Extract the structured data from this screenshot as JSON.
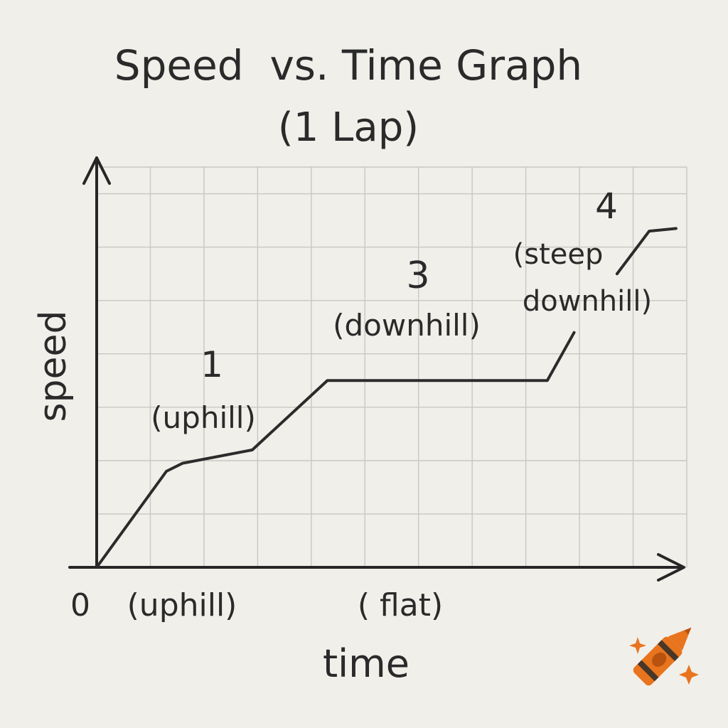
{
  "chart_data": {
    "type": "line",
    "title": "Speed  vs. Time Graph",
    "subtitle": "(1 Lap)",
    "xlabel": "time",
    "ylabel": "speed",
    "x_tick_labels": [
      "0"
    ],
    "grid": true,
    "x_range": [
      0,
      11
    ],
    "y_range": [
      0,
      7.5
    ],
    "series": [
      {
        "points": [
          {
            "x": 0,
            "y": 0
          },
          {
            "x": 1.3,
            "y": 1.8
          },
          {
            "x": 1.6,
            "y": 1.95
          },
          {
            "x": 2.9,
            "y": 2.2
          },
          {
            "x": 4.3,
            "y": 3.5
          },
          {
            "x": 8.4,
            "y": 3.5
          },
          {
            "x": 8.9,
            "y": 4.4
          }
        ]
      },
      {
        "points": [
          {
            "x": 9.7,
            "y": 5.5
          },
          {
            "x": 10.3,
            "y": 6.3
          },
          {
            "x": 10.8,
            "y": 6.35
          }
        ]
      }
    ],
    "annotations": [
      {
        "id": "label-1-number",
        "text": "1"
      },
      {
        "id": "label-1-desc",
        "text": "(uphill)"
      },
      {
        "id": "label-3-number",
        "text": "3"
      },
      {
        "id": "label-3-desc",
        "text": "(downhill)"
      },
      {
        "id": "label-4-number",
        "text": "4"
      },
      {
        "id": "label-4-desc-line1",
        "text": "(steep"
      },
      {
        "id": "label-4-desc-line2",
        "text": "downhill)"
      },
      {
        "id": "x-annotation-uphill",
        "text": "(uphill)"
      },
      {
        "id": "x-annotation-flat",
        "text": "( flat)"
      }
    ]
  },
  "logo": {
    "icon": "crayon-icon",
    "color": "#e8741e"
  }
}
